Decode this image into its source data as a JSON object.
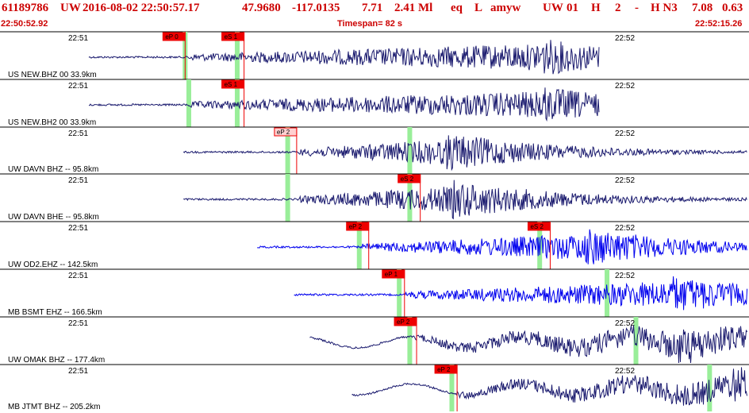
{
  "header": {
    "event_id": "61189786",
    "network": "UW",
    "datetime": "2016-08-02 22:50:57.17",
    "lat": "47.9680",
    "lon": "-117.0135",
    "depth": "7.71",
    "magnitude": "2.41 Ml",
    "type": "eq",
    "flag": "L",
    "author": "amyw",
    "qual_net": "UW",
    "qual_01": "01",
    "qual_h": "H",
    "qual_2": "2",
    "qual_dash": "-",
    "qual_hn3": "H N3",
    "val1": "7.08",
    "val2": "0.63"
  },
  "subheader": {
    "start_time": "22:50:52.92",
    "timespan": "Timespan=  82 s",
    "end_time": "22:52:15.26"
  },
  "colors": {
    "header_text": "#cc0000",
    "trace_dark": "#1a1a6e",
    "trace_blue": "#0000ee",
    "pick_box": "#ee0000",
    "pick_box_light": "#ffd0d0",
    "window_green": "#99ee99",
    "separator": "#000000"
  },
  "tick_labels": {
    "first": "22:51",
    "second": "22:52"
  },
  "channels": [
    {
      "label": "US NEW.BHZ 00 33.9km",
      "color": "dark",
      "picks": [
        {
          "text": "eP 0",
          "t": 0.183,
          "style": "solid"
        },
        {
          "text": "eS 1",
          "t": 0.295,
          "style": "solid"
        }
      ],
      "green": [
        0.183,
        0.282
      ],
      "start": 0.0,
      "onset": 0.19,
      "end": 0.97,
      "peak": 0.85,
      "lf": 0
    },
    {
      "label": "US NEW.BH2 00 33.9km",
      "color": "dark",
      "picks": [
        {
          "text": "eS 1",
          "t": 0.295,
          "style": "solid"
        }
      ],
      "green": [
        0.19,
        0.282
      ],
      "start": 0.0,
      "onset": 0.19,
      "end": 0.97,
      "peak": 0.85,
      "lf": 0
    },
    {
      "label": "UW DAVN BHZ -- 95.8km",
      "color": "dark",
      "picks": [
        {
          "text": "eP 2",
          "t": 0.395,
          "style": "light"
        }
      ],
      "green": [
        0.378,
        0.61
      ],
      "start": 0.18,
      "onset": 0.4,
      "end": 1.28,
      "peak": 0.68,
      "lf": 0
    },
    {
      "label": "UW DAVN BHE -- 95.8km",
      "color": "dark",
      "picks": [
        {
          "text": "eS 2",
          "t": 0.63,
          "style": "solid"
        }
      ],
      "green": [
        0.378,
        0.61
      ],
      "start": 0.18,
      "onset": 0.4,
      "end": 1.28,
      "peak": 0.69,
      "lf": 0
    },
    {
      "label": "UW OD2.EHZ -- 142.5km",
      "color": "blue",
      "picks": [
        {
          "text": "eP 2",
          "t": 0.532,
          "style": "solid"
        },
        {
          "text": "eS 2",
          "t": 0.877,
          "style": "solid"
        }
      ],
      "green": [
        0.514,
        0.857
      ],
      "start": 0.32,
      "onset": 0.52,
      "end": 1.4,
      "peak": 0.94,
      "lf": 0
    },
    {
      "label": "MB BSMT EHZ -- 166.5km",
      "color": "blue",
      "picks": [
        {
          "text": "eP 1",
          "t": 0.6,
          "style": "solid"
        }
      ],
      "green": [
        0.59,
        0.985
      ],
      "start": 0.39,
      "onset": 0.6,
      "end": 1.49,
      "peak": 1.1,
      "lf": 0
    },
    {
      "label": "UW OMAK BHZ -- 177.4km",
      "color": "dark",
      "picks": [
        {
          "text": "eP 2",
          "t": 0.623,
          "style": "solid"
        }
      ],
      "green": [
        0.61,
        1.04
      ],
      "start": 0.42,
      "onset": 0.62,
      "end": 1.52,
      "peak": 1.12,
      "lf": 1
    },
    {
      "label": "MB JTMT BHZ -- 205.2km",
      "color": "dark",
      "picks": [
        {
          "text": "eP 2",
          "t": 0.7,
          "style": "solid"
        }
      ],
      "green": [
        0.69,
        1.18
      ],
      "start": 0.5,
      "onset": 0.7,
      "end": 1.6,
      "peak": 1.22,
      "lf": 1
    }
  ]
}
